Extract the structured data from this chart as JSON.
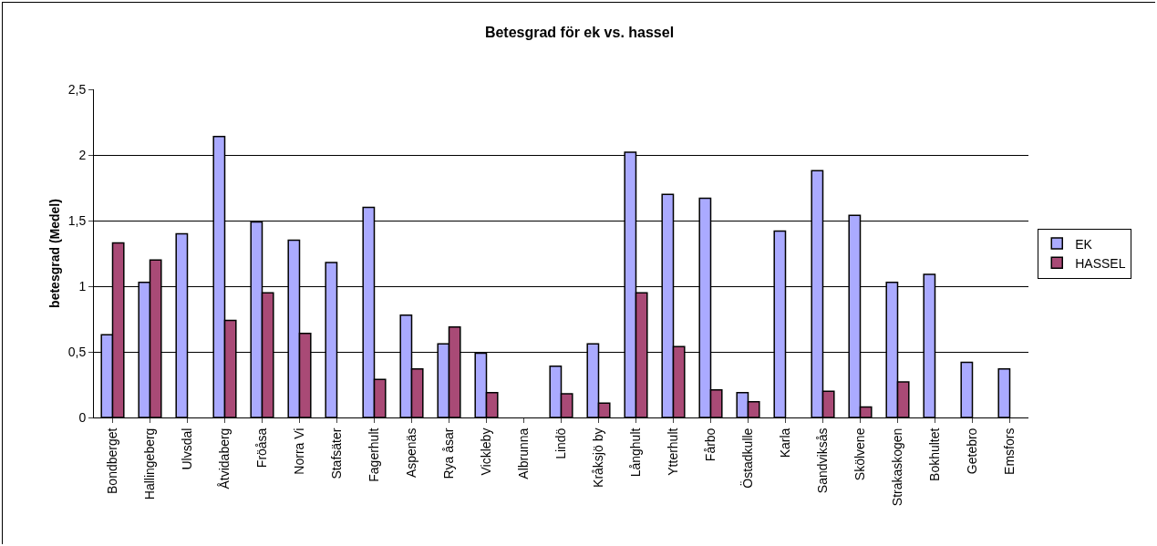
{
  "chart_data": {
    "type": "bar",
    "title": "Betesgrad för ek vs. hassel",
    "ylabel": "betesgrad (Medel)",
    "categories": [
      "Bondberget",
      "Hallingeberg",
      "Ulvsdal",
      "Åtvidaberg",
      "Fröåsa",
      "Norra Vi",
      "Stafsäter",
      "Fagerhult",
      "Aspenäs",
      "Rya åsar",
      "Vickleby",
      "Albrunna",
      "Lindö",
      "Kråksjö by",
      "Långhult",
      "Ytterhult",
      "Fårbo",
      "Östadkulle",
      "Karla",
      "Sandviksås",
      "Skölvene",
      "Strakaskogen",
      "Bokhultet",
      "Getebro",
      "Emsfors"
    ],
    "series": [
      {
        "name": "EK",
        "color": "#aaaaff",
        "values": [
          0.63,
          1.03,
          1.4,
          2.14,
          1.49,
          1.35,
          1.18,
          1.6,
          0.78,
          0.56,
          0.49,
          null,
          0.39,
          0.56,
          2.02,
          1.7,
          1.67,
          0.19,
          1.42,
          1.88,
          1.54,
          1.03,
          1.09,
          0.42,
          0.37
        ]
      },
      {
        "name": "HASSEL",
        "color": "#a94a76",
        "values": [
          1.33,
          1.2,
          null,
          0.74,
          0.95,
          0.64,
          null,
          0.29,
          0.37,
          0.69,
          0.19,
          null,
          0.18,
          0.11,
          0.95,
          0.54,
          0.21,
          0.12,
          null,
          0.2,
          0.08,
          0.27,
          null,
          null,
          null
        ]
      }
    ],
    "ylim": [
      0,
      2.5
    ],
    "yticks": [
      {
        "value": 0,
        "label": "0"
      },
      {
        "value": 0.5,
        "label": "0,5"
      },
      {
        "value": 1,
        "label": "1"
      },
      {
        "value": 1.5,
        "label": "1,5"
      },
      {
        "value": 2,
        "label": "2"
      },
      {
        "value": 2.5,
        "label": "2,5"
      }
    ],
    "grid": "y",
    "legend": "right"
  }
}
